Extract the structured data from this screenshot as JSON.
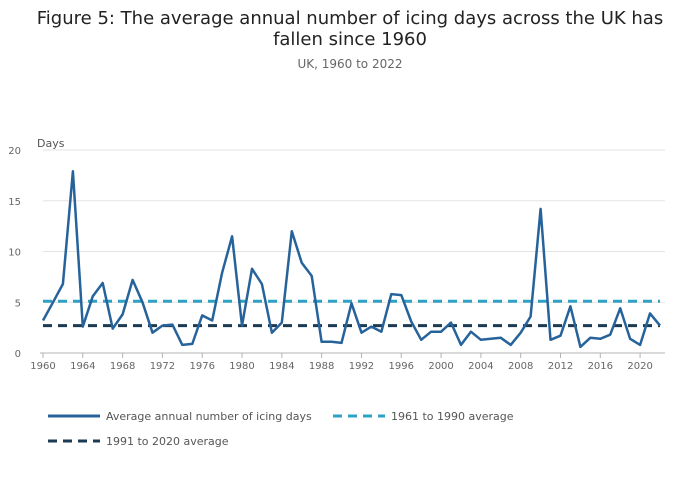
{
  "title": "Figure 5: The average annual number of icing days across the UK has fallen since 1960",
  "subtitle": "UK, 1960 to 2022",
  "chart_data": {
    "type": "line",
    "title": "Figure 5: The average annual number of icing days across the UK has fallen since 1960",
    "subtitle": "UK, 1960 to 2022",
    "ylabel": "Days",
    "xlabel": "",
    "xlim": [
      1960,
      2022
    ],
    "ylim": [
      0,
      20
    ],
    "x_ticks": [
      1960,
      1964,
      1968,
      1972,
      1976,
      1980,
      1984,
      1988,
      1992,
      1996,
      2000,
      2004,
      2008,
      2012,
      2016,
      2020
    ],
    "y_ticks": [
      0,
      5,
      10,
      15,
      20
    ],
    "grid": "horizontal",
    "legend_position": "bottom",
    "series": [
      {
        "name": "Average annual number of icing days",
        "color": "#27639b",
        "style": "solid",
        "x": [
          1960,
          1961,
          1962,
          1963,
          1964,
          1965,
          1966,
          1967,
          1968,
          1969,
          1970,
          1971,
          1972,
          1973,
          1974,
          1975,
          1976,
          1977,
          1978,
          1979,
          1980,
          1981,
          1982,
          1983,
          1984,
          1985,
          1986,
          1987,
          1988,
          1989,
          1990,
          1991,
          1992,
          1993,
          1994,
          1995,
          1996,
          1997,
          1998,
          1999,
          2000,
          2001,
          2002,
          2003,
          2004,
          2005,
          2006,
          2007,
          2008,
          2009,
          2010,
          2011,
          2012,
          2013,
          2014,
          2015,
          2016,
          2017,
          2018,
          2019,
          2020,
          2021,
          2022
        ],
        "values": [
          3.2,
          5.0,
          6.8,
          17.9,
          2.6,
          5.6,
          6.9,
          2.4,
          3.8,
          7.2,
          5.0,
          2.0,
          2.7,
          2.8,
          0.8,
          0.9,
          3.7,
          3.2,
          7.9,
          11.5,
          2.7,
          8.3,
          6.8,
          2.0,
          3.0,
          12.0,
          8.9,
          7.6,
          1.1,
          1.1,
          1.0,
          4.9,
          2.0,
          2.6,
          2.1,
          5.8,
          5.7,
          3.1,
          1.3,
          2.1,
          2.1,
          3.0,
          0.8,
          2.1,
          1.3,
          1.4,
          1.5,
          0.8,
          2.0,
          3.6,
          14.2,
          1.3,
          1.7,
          4.6,
          0.6,
          1.5,
          1.4,
          1.8,
          4.4,
          1.4,
          0.8,
          3.9,
          2.7
        ]
      },
      {
        "name": "1961 to 1990 average",
        "color": "#2ea1c4",
        "style": "dashed",
        "x": [
          1960,
          2022
        ],
        "values": [
          5.1,
          5.1
        ]
      },
      {
        "name": "1991 to 2020 average",
        "color": "#1c3a52",
        "style": "dashed",
        "x": [
          1960,
          2022
        ],
        "values": [
          2.7,
          2.7
        ]
      }
    ]
  }
}
